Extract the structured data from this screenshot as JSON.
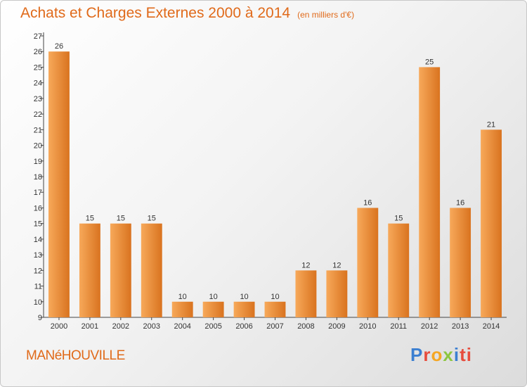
{
  "chart_data": {
    "type": "bar",
    "title": "Achats et Charges Externes 2000 à 2014",
    "unit": "(en milliers d'€)",
    "categories": [
      "2000",
      "2001",
      "2002",
      "2003",
      "2004",
      "2005",
      "2006",
      "2007",
      "2008",
      "2009",
      "2010",
      "2011",
      "2012",
      "2013",
      "2014"
    ],
    "values": [
      26,
      15,
      15,
      15,
      10,
      10,
      10,
      10,
      12,
      12,
      16,
      15,
      25,
      16,
      21
    ],
    "ylim": [
      9,
      27
    ],
    "yticks": [
      9,
      10,
      11,
      12,
      13,
      14,
      15,
      16,
      17,
      18,
      19,
      20,
      21,
      22,
      23,
      24,
      25,
      26,
      27
    ],
    "grid": false,
    "bar_color": "#f0923a"
  },
  "place_name": "MANéHOUVILLE",
  "logo": [
    "P",
    "r",
    "o",
    "x",
    "i",
    "ti"
  ]
}
